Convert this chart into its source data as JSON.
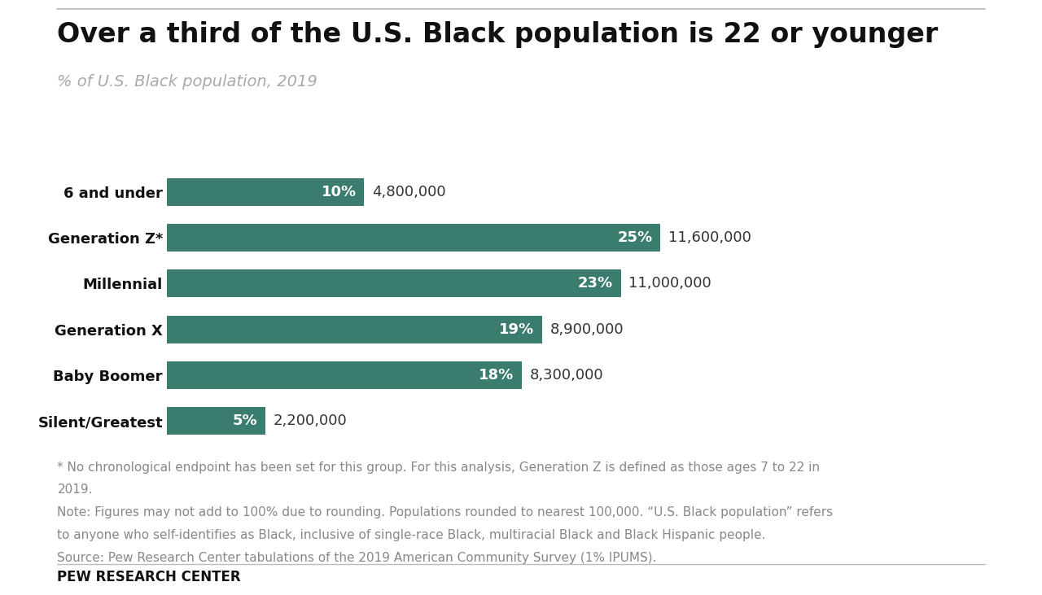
{
  "title": "Over a third of the U.S. Black population is 22 or younger",
  "subtitle": "% of U.S. Black population, 2019",
  "categories": [
    "6 and under",
    "Generation Z*",
    "Millennial",
    "Generation X",
    "Baby Boomer",
    "Silent/Greatest"
  ],
  "values": [
    10,
    25,
    23,
    19,
    18,
    5
  ],
  "populations": [
    "4,800,000",
    "11,600,000",
    "11,000,000",
    "8,900,000",
    "8,300,000",
    "2,200,000"
  ],
  "bar_color": "#3a7d6e",
  "text_color_inside": "#ffffff",
  "text_color_outside": "#333333",
  "background_color": "#ffffff",
  "footnote_lines": [
    "* No chronological endpoint has been set for this group. For this analysis, Generation Z is defined as those ages 7 to 22 in",
    "2019.",
    "Note: Figures may not add to 100% due to rounding. Populations rounded to nearest 100,000. “U.S. Black population” refers",
    "to anyone who self-identifies as Black, inclusive of single-race Black, multiracial Black and Black Hispanic people.",
    "Source: Pew Research Center tabulations of the 2019 American Community Survey (1% IPUMS)."
  ],
  "source_label": "PEW RESEARCH CENTER",
  "title_fontsize": 24,
  "subtitle_fontsize": 14,
  "label_fontsize": 13,
  "bar_label_fontsize": 13,
  "footnote_fontsize": 11,
  "source_fontsize": 12
}
